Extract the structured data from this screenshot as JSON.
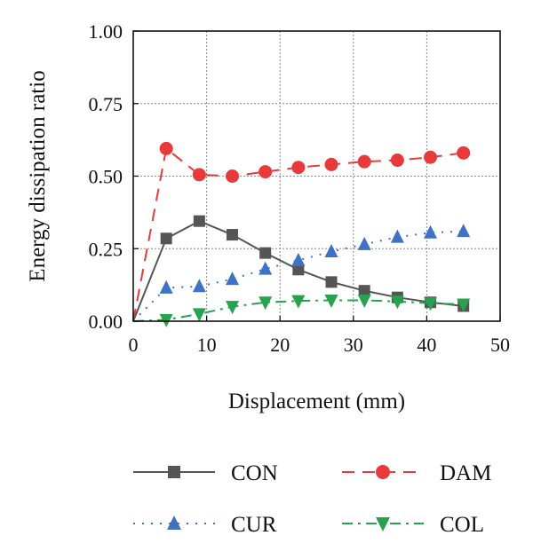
{
  "chart_data": {
    "type": "line",
    "xlabel": "Displacement (mm)",
    "ylabel": "Energy dissipation ratio",
    "xlim": [
      0,
      50
    ],
    "ylim": [
      0,
      1.0
    ],
    "xticks": [
      "0",
      "10",
      "20",
      "30",
      "40",
      "50"
    ],
    "yticks": [
      "0.00",
      "0.25",
      "0.50",
      "0.75",
      "1.00"
    ],
    "grid": true,
    "legend_position": "bottom",
    "series": [
      {
        "name": "CON",
        "color": "#555555",
        "marker": "square",
        "line": "solid",
        "x": [
          0,
          4.5,
          9,
          13.5,
          18,
          22.5,
          27,
          31.5,
          36,
          40.5,
          45
        ],
        "y": [
          0.0,
          0.285,
          0.345,
          0.298,
          0.235,
          0.178,
          0.135,
          0.105,
          0.082,
          0.065,
          0.052
        ]
      },
      {
        "name": "DAM",
        "color": "#e8393b",
        "marker": "circle",
        "line": "dashed",
        "x": [
          0,
          4.5,
          9,
          13.5,
          18,
          22.5,
          27,
          31.5,
          36,
          40.5,
          45
        ],
        "y": [
          0.0,
          0.595,
          0.505,
          0.5,
          0.515,
          0.53,
          0.54,
          0.55,
          0.555,
          0.565,
          0.58
        ]
      },
      {
        "name": "CUR",
        "color": "#3f72c4",
        "marker": "triangle-up",
        "line": "dotted",
        "x": [
          0,
          4.5,
          9,
          13.5,
          18,
          22.5,
          27,
          31.5,
          36,
          40.5,
          45
        ],
        "y": [
          0.0,
          0.115,
          0.12,
          0.145,
          0.18,
          0.21,
          0.24,
          0.265,
          0.29,
          0.305,
          0.31
        ]
      },
      {
        "name": "COL",
        "color": "#27a24f",
        "marker": "triangle-down",
        "line": "dashdot",
        "x": [
          0,
          4.5,
          9,
          13.5,
          18,
          22.5,
          27,
          31.5,
          36,
          40.5,
          45
        ],
        "y": [
          0.0,
          0.005,
          0.025,
          0.05,
          0.065,
          0.07,
          0.072,
          0.072,
          0.068,
          0.062,
          0.058
        ]
      }
    ]
  }
}
